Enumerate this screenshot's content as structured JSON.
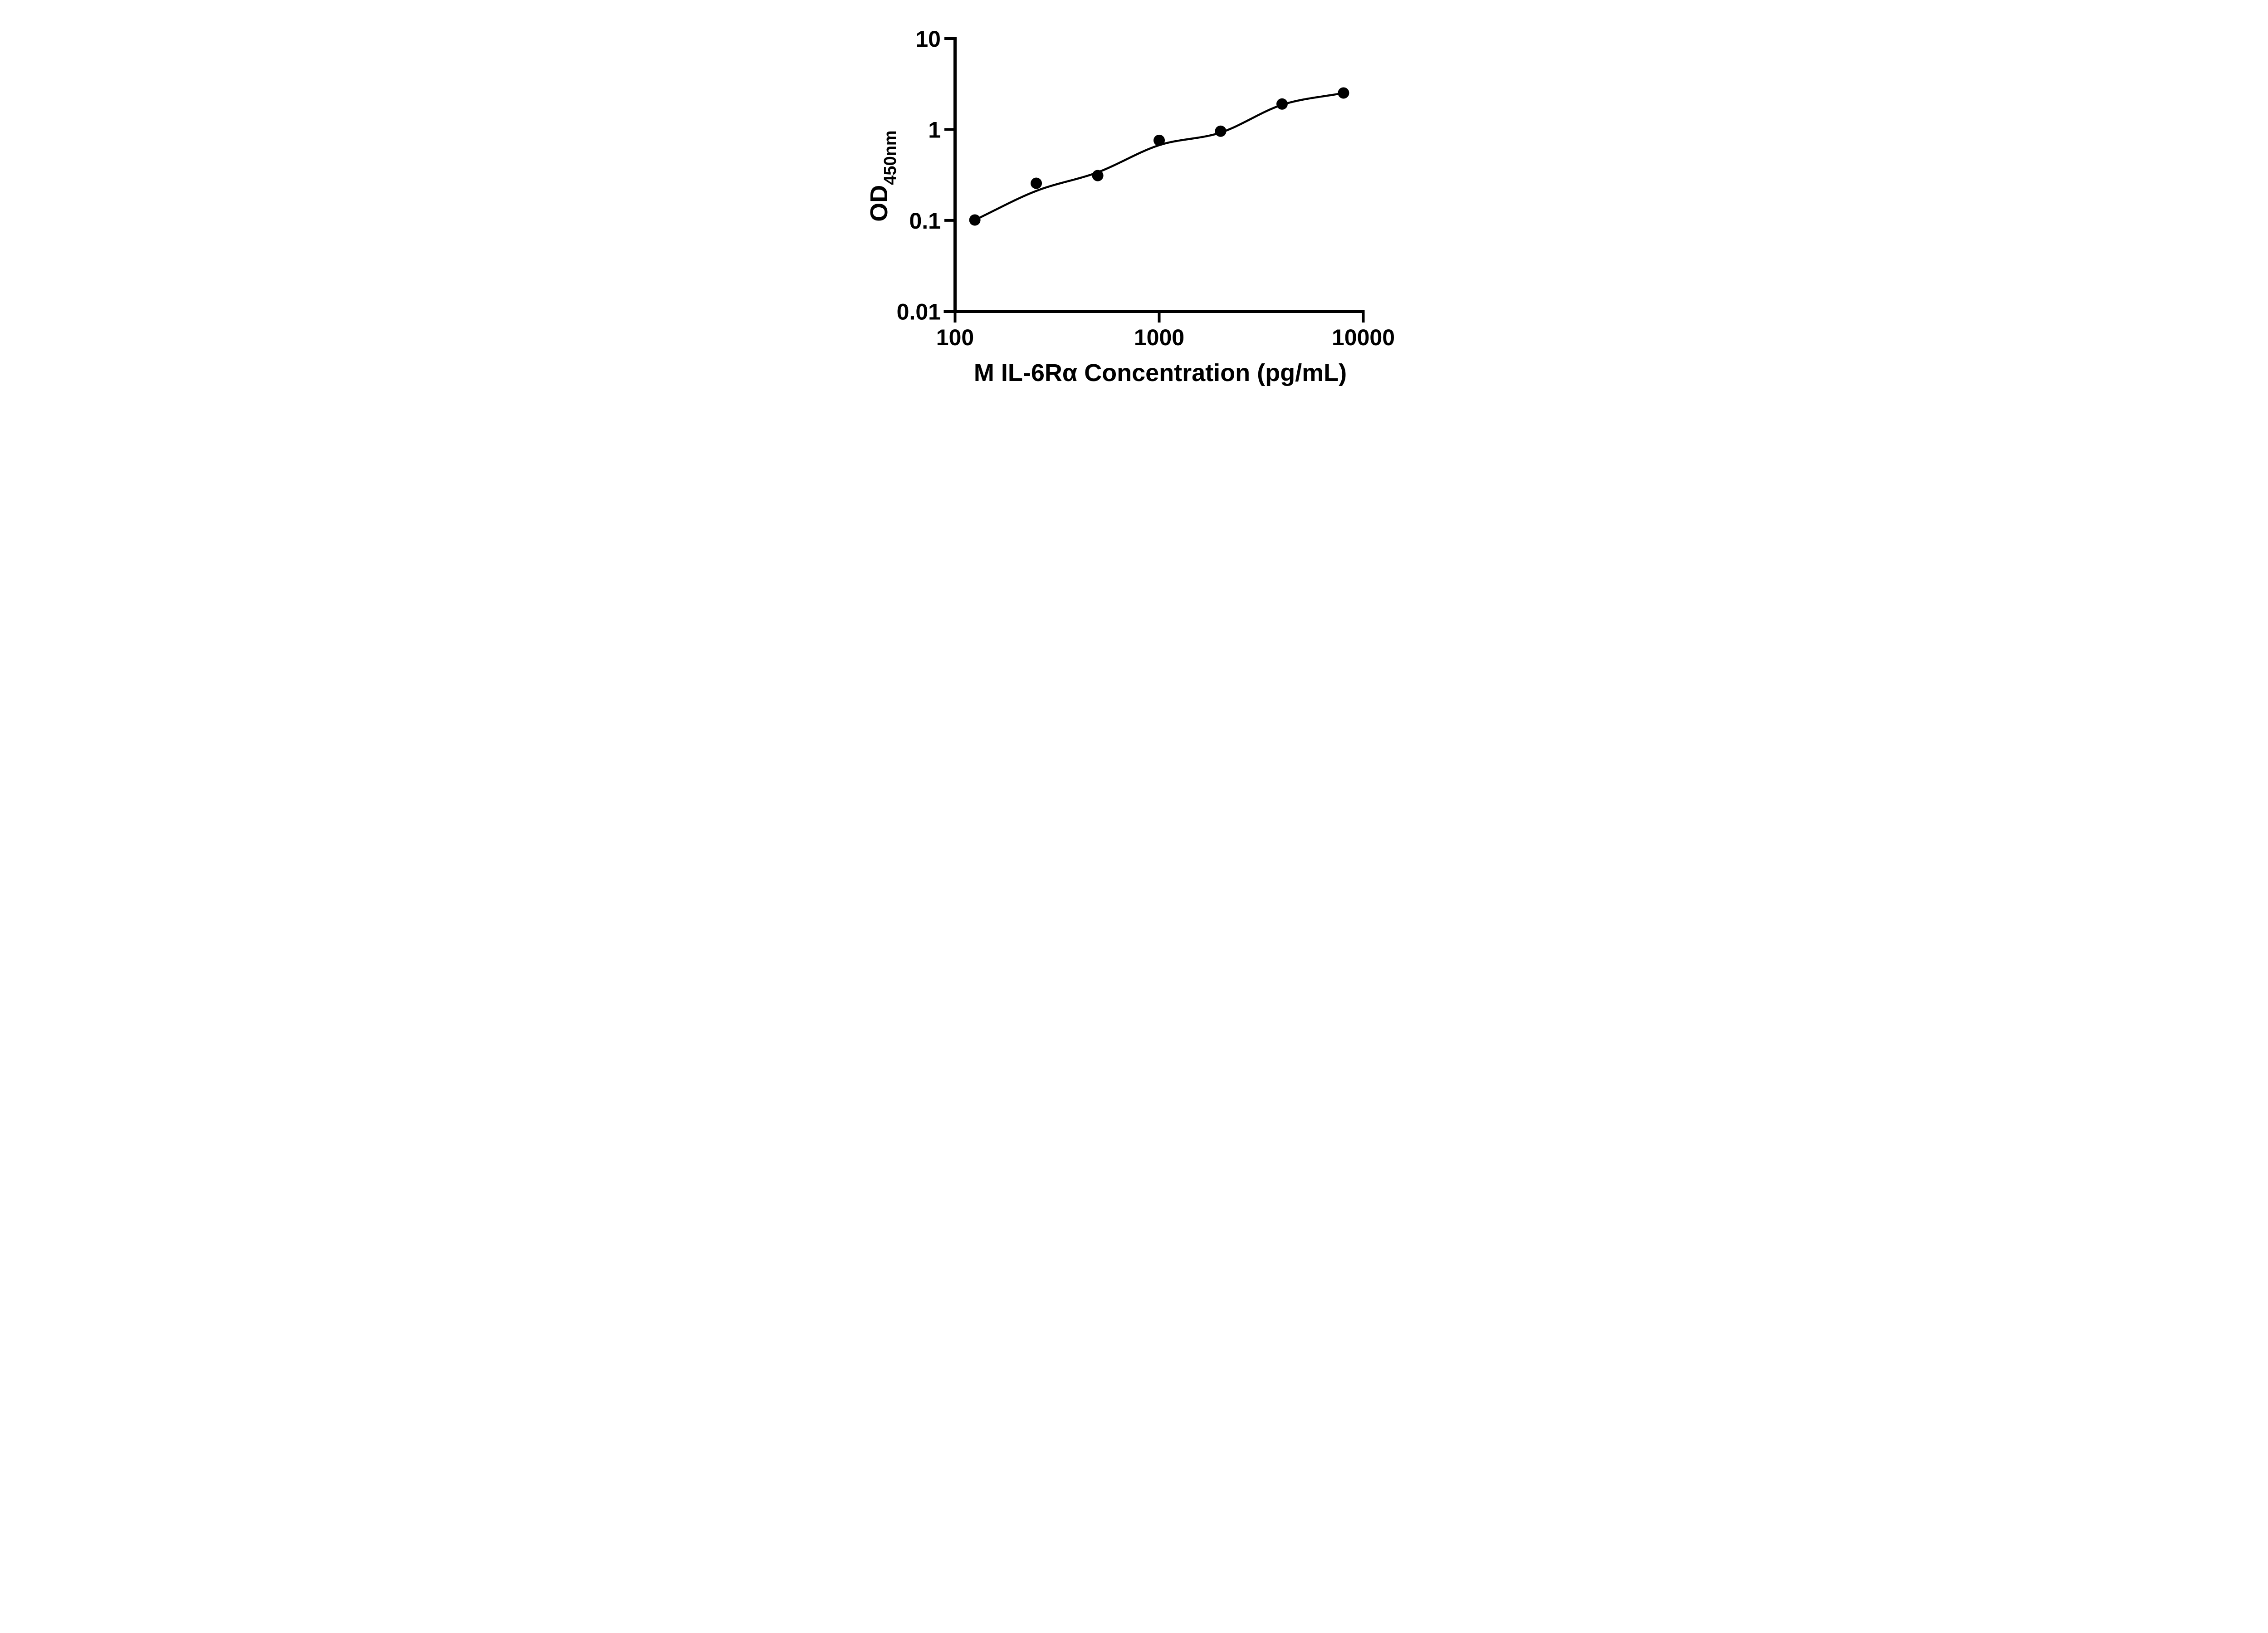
{
  "page": {
    "background": "#ffffff",
    "ink": "#000000"
  },
  "chart_data": {
    "type": "scatter",
    "title": "",
    "xlabel": "M IL-6Rα Concentration (pg/mL)",
    "ylabel": "OD450nm",
    "ylabel_main": "OD",
    "ylabel_subscript": "450nm",
    "x_scale": "log10",
    "y_scale": "log10",
    "xlim": [
      100,
      10000
    ],
    "ylim": [
      0.01,
      10
    ],
    "x_ticks": [
      100,
      1000,
      10000
    ],
    "x_tick_labels": [
      "100",
      "1000",
      "10000"
    ],
    "y_ticks": [
      10,
      1,
      0.1,
      0.01
    ],
    "y_tick_labels": [
      "10",
      "1",
      "0.1",
      "0.01"
    ],
    "grid": false,
    "legend": null,
    "marker": {
      "shape": "circle",
      "color": "#000000"
    },
    "series": [
      {
        "name": "standard-points",
        "type": "scatter",
        "points": [
          [
            125,
            0.101
          ],
          [
            250,
            0.256
          ],
          [
            500,
            0.311
          ],
          [
            1000,
            0.759
          ],
          [
            2000,
            0.957
          ],
          [
            4000,
            1.906
          ],
          [
            8000,
            2.52
          ]
        ]
      },
      {
        "name": "fitted-curve",
        "type": "line",
        "points": [
          [
            125,
            0.101
          ],
          [
            250,
            0.211
          ],
          [
            500,
            0.338
          ],
          [
            1000,
            0.672
          ],
          [
            2000,
            0.924
          ],
          [
            4000,
            1.868
          ],
          [
            8000,
            2.52
          ]
        ]
      }
    ]
  }
}
